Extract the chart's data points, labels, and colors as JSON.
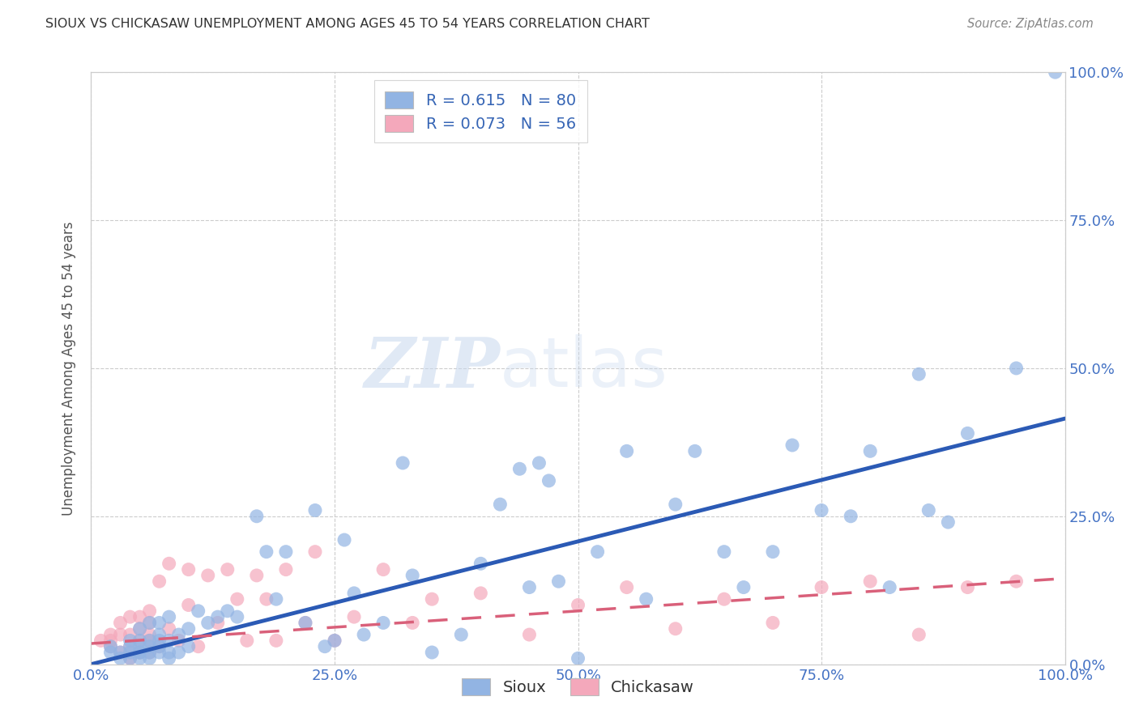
{
  "title": "SIOUX VS CHICKASAW UNEMPLOYMENT AMONG AGES 45 TO 54 YEARS CORRELATION CHART",
  "source": "Source: ZipAtlas.com",
  "ylabel": "Unemployment Among Ages 45 to 54 years",
  "xlim": [
    0.0,
    1.0
  ],
  "ylim": [
    0.0,
    1.0
  ],
  "xtick_labels": [
    "0.0%",
    "25.0%",
    "50.0%",
    "75.0%",
    "100.0%"
  ],
  "xtick_positions": [
    0.0,
    0.25,
    0.5,
    0.75,
    1.0
  ],
  "right_ytick_labels": [
    "0.0%",
    "25.0%",
    "50.0%",
    "75.0%",
    "100.0%"
  ],
  "right_ytick_positions": [
    0.0,
    0.25,
    0.5,
    0.75,
    1.0
  ],
  "sioux_color": "#92b4e3",
  "chickasaw_color": "#f4a8bb",
  "sioux_line_color": "#2b5ab5",
  "chickasaw_line_color": "#d9607a",
  "legend_text_color": "#3665b5",
  "sioux_R": 0.615,
  "sioux_N": 80,
  "chickasaw_R": 0.073,
  "chickasaw_N": 56,
  "watermark_zip": "ZIP",
  "watermark_atlas": "atlas",
  "background_color": "#ffffff",
  "grid_color": "#cccccc",
  "title_color": "#333333",
  "axis_label_color": "#555555",
  "tick_label_color_blue": "#4472c4",
  "sioux_x": [
    0.02,
    0.02,
    0.03,
    0.03,
    0.04,
    0.04,
    0.04,
    0.04,
    0.05,
    0.05,
    0.05,
    0.05,
    0.05,
    0.05,
    0.06,
    0.06,
    0.06,
    0.06,
    0.06,
    0.07,
    0.07,
    0.07,
    0.07,
    0.07,
    0.08,
    0.08,
    0.08,
    0.08,
    0.09,
    0.09,
    0.1,
    0.1,
    0.11,
    0.12,
    0.13,
    0.14,
    0.15,
    0.17,
    0.18,
    0.19,
    0.2,
    0.22,
    0.23,
    0.24,
    0.25,
    0.26,
    0.27,
    0.28,
    0.3,
    0.32,
    0.33,
    0.35,
    0.38,
    0.4,
    0.42,
    0.44,
    0.45,
    0.46,
    0.47,
    0.48,
    0.5,
    0.52,
    0.55,
    0.57,
    0.6,
    0.62,
    0.65,
    0.67,
    0.7,
    0.72,
    0.75,
    0.78,
    0.8,
    0.82,
    0.85,
    0.86,
    0.88,
    0.9,
    0.95,
    0.99
  ],
  "sioux_y": [
    0.02,
    0.03,
    0.01,
    0.02,
    0.01,
    0.02,
    0.03,
    0.04,
    0.01,
    0.02,
    0.02,
    0.03,
    0.04,
    0.06,
    0.01,
    0.02,
    0.03,
    0.04,
    0.07,
    0.02,
    0.03,
    0.04,
    0.05,
    0.07,
    0.01,
    0.02,
    0.04,
    0.08,
    0.02,
    0.05,
    0.03,
    0.06,
    0.09,
    0.07,
    0.08,
    0.09,
    0.08,
    0.25,
    0.19,
    0.11,
    0.19,
    0.07,
    0.26,
    0.03,
    0.04,
    0.21,
    0.12,
    0.05,
    0.07,
    0.34,
    0.15,
    0.02,
    0.05,
    0.17,
    0.27,
    0.33,
    0.13,
    0.34,
    0.31,
    0.14,
    0.01,
    0.19,
    0.36,
    0.11,
    0.27,
    0.36,
    0.19,
    0.13,
    0.19,
    0.37,
    0.26,
    0.25,
    0.36,
    0.13,
    0.49,
    0.26,
    0.24,
    0.39,
    0.5,
    1.0
  ],
  "chickasaw_x": [
    0.01,
    0.02,
    0.02,
    0.02,
    0.03,
    0.03,
    0.03,
    0.04,
    0.04,
    0.04,
    0.04,
    0.05,
    0.05,
    0.05,
    0.05,
    0.06,
    0.06,
    0.06,
    0.06,
    0.06,
    0.07,
    0.07,
    0.08,
    0.08,
    0.09,
    0.1,
    0.1,
    0.11,
    0.12,
    0.13,
    0.14,
    0.15,
    0.16,
    0.17,
    0.18,
    0.19,
    0.2,
    0.22,
    0.23,
    0.25,
    0.27,
    0.3,
    0.33,
    0.35,
    0.4,
    0.45,
    0.5,
    0.55,
    0.6,
    0.65,
    0.7,
    0.75,
    0.8,
    0.85,
    0.9,
    0.95
  ],
  "chickasaw_y": [
    0.04,
    0.03,
    0.04,
    0.05,
    0.02,
    0.05,
    0.07,
    0.01,
    0.03,
    0.05,
    0.08,
    0.02,
    0.04,
    0.06,
    0.08,
    0.02,
    0.04,
    0.05,
    0.07,
    0.09,
    0.03,
    0.14,
    0.06,
    0.17,
    0.04,
    0.1,
    0.16,
    0.03,
    0.15,
    0.07,
    0.16,
    0.11,
    0.04,
    0.15,
    0.11,
    0.04,
    0.16,
    0.07,
    0.19,
    0.04,
    0.08,
    0.16,
    0.07,
    0.11,
    0.12,
    0.05,
    0.1,
    0.13,
    0.06,
    0.11,
    0.07,
    0.13,
    0.14,
    0.05,
    0.13,
    0.14
  ],
  "sioux_trend": [
    0.0,
    0.415
  ],
  "chickasaw_trend": [
    0.035,
    0.145
  ]
}
